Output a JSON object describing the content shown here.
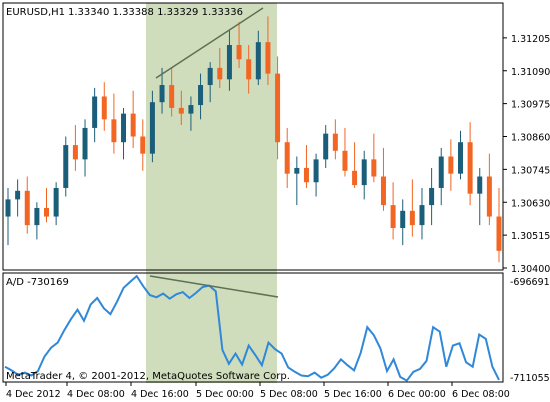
{
  "header": {
    "symbol_label": "EURUSD,H1",
    "ohlc_values": "1.33340 1.33388 1.33329 1.33336"
  },
  "indicator": {
    "label": "A/D -730169",
    "max_label": "-696691",
    "min_label": "-711055"
  },
  "footer": {
    "copyright": "MetaTrader 4, © 2001-2012, MetaQuotes Software Corp."
  },
  "colors": {
    "bull": "#1b5e7a",
    "bear": "#f26522",
    "highlight": "#cfddbd",
    "ad_line": "#2f88d8",
    "trend_line": "#5f6f55"
  },
  "chart_data": [
    {
      "type": "candlestick",
      "title": "EURUSD,H1",
      "ylim": [
        1.304,
        1.3132
      ],
      "y_ticks": [
        "1.31205",
        "1.31090",
        "1.30975",
        "1.30860",
        "1.30745",
        "1.30630",
        "1.30515",
        "1.30400"
      ],
      "x_ticks": [
        "4 Dec 2012",
        "4 Dec 08:00",
        "4 Dec 16:00",
        "5 Dec 00:00",
        "5 Dec 08:00",
        "5 Dec 16:00",
        "6 Dec 00:00",
        "6 Dec 08:00"
      ],
      "bear_from_index": 43,
      "candles": [
        [
          1.3058,
          1.3068,
          1.3048,
          1.3064
        ],
        [
          1.3064,
          1.3071,
          1.3058,
          1.3067
        ],
        [
          1.3067,
          1.3072,
          1.3052,
          1.3055
        ],
        [
          1.3055,
          1.3063,
          1.305,
          1.3061
        ],
        [
          1.3061,
          1.3068,
          1.3056,
          1.3058
        ],
        [
          1.3058,
          1.307,
          1.3055,
          1.3068
        ],
        [
          1.3068,
          1.3086,
          1.3065,
          1.3083
        ],
        [
          1.3083,
          1.309,
          1.3074,
          1.3078
        ],
        [
          1.3078,
          1.3092,
          1.3072,
          1.3089
        ],
        [
          1.3089,
          1.3103,
          1.3084,
          1.31
        ],
        [
          1.31,
          1.3105,
          1.3088,
          1.3092
        ],
        [
          1.3092,
          1.3101,
          1.308,
          1.3084
        ],
        [
          1.3084,
          1.3096,
          1.3078,
          1.3094
        ],
        [
          1.3094,
          1.3102,
          1.3082,
          1.3086
        ],
        [
          1.3086,
          1.3092,
          1.3074,
          1.308
        ],
        [
          1.308,
          1.3102,
          1.3077,
          1.3098
        ],
        [
          1.3098,
          1.311,
          1.3094,
          1.3104
        ],
        [
          1.3104,
          1.311,
          1.3093,
          1.3096
        ],
        [
          1.3096,
          1.3102,
          1.309,
          1.3094
        ],
        [
          1.3094,
          1.31,
          1.3088,
          1.3097
        ],
        [
          1.3097,
          1.3108,
          1.3092,
          1.3104
        ],
        [
          1.3104,
          1.3112,
          1.3098,
          1.311
        ],
        [
          1.311,
          1.3117,
          1.3103,
          1.3106
        ],
        [
          1.3106,
          1.3123,
          1.3102,
          1.3118
        ],
        [
          1.3118,
          1.3126,
          1.311,
          1.3113
        ],
        [
          1.3113,
          1.3118,
          1.3101,
          1.3106
        ],
        [
          1.3106,
          1.3123,
          1.3104,
          1.3119
        ],
        [
          1.3119,
          1.3128,
          1.3104,
          1.3108
        ],
        [
          1.3108,
          1.3114,
          1.3078,
          1.3084
        ],
        [
          1.3084,
          1.3089,
          1.3068,
          1.3073
        ],
        [
          1.3073,
          1.3079,
          1.3062,
          1.3075
        ],
        [
          1.3075,
          1.3083,
          1.3068,
          1.307
        ],
        [
          1.307,
          1.308,
          1.3065,
          1.3078
        ],
        [
          1.3078,
          1.309,
          1.3075,
          1.3087
        ],
        [
          1.3087,
          1.3092,
          1.3078,
          1.3081
        ],
        [
          1.3081,
          1.3089,
          1.3072,
          1.3074
        ],
        [
          1.3074,
          1.3084,
          1.3068,
          1.3069
        ],
        [
          1.3069,
          1.3081,
          1.3064,
          1.3078
        ],
        [
          1.3078,
          1.3087,
          1.307,
          1.3072
        ],
        [
          1.3072,
          1.3082,
          1.306,
          1.3062
        ],
        [
          1.3062,
          1.307,
          1.305,
          1.3054
        ],
        [
          1.3054,
          1.3064,
          1.3048,
          1.306
        ],
        [
          1.306,
          1.3071,
          1.3051,
          1.3055
        ],
        [
          1.3055,
          1.3068,
          1.305,
          1.3062
        ],
        [
          1.3062,
          1.3075,
          1.3055,
          1.3068
        ],
        [
          1.3068,
          1.3082,
          1.3062,
          1.3079
        ],
        [
          1.3079,
          1.3085,
          1.3067,
          1.3073
        ],
        [
          1.3073,
          1.3088,
          1.3071,
          1.3084
        ],
        [
          1.3084,
          1.3091,
          1.3062,
          1.3066
        ],
        [
          1.3066,
          1.3075,
          1.3055,
          1.3072
        ],
        [
          1.3072,
          1.308,
          1.3055,
          1.3058
        ],
        [
          1.3058,
          1.3068,
          1.3042,
          1.3046
        ]
      ]
    },
    {
      "type": "line",
      "title": "A/D -730169",
      "ylim": [
        -711055,
        -696691
      ],
      "values": [
        -709100,
        -709600,
        -710200,
        -709900,
        -710300,
        -709700,
        -707700,
        -706500,
        -705800,
        -704100,
        -702600,
        -701300,
        -702800,
        -700600,
        -699700,
        -701100,
        -701900,
        -700200,
        -698300,
        -697500,
        -696700,
        -698100,
        -699300,
        -699600,
        -699100,
        -699800,
        -699200,
        -698900,
        -699700,
        -699000,
        -698200,
        -698000,
        -698800,
        -706800,
        -708700,
        -707300,
        -708800,
        -706200,
        -707500,
        -708900,
        -705800,
        -706700,
        -707300,
        -709200,
        -709800,
        -710300,
        -710400,
        -709900,
        -710600,
        -710200,
        -709300,
        -708100,
        -708900,
        -709600,
        -707200,
        -703700,
        -704800,
        -706600,
        -709700,
        -708100,
        -710500,
        -711000,
        -709800,
        -709400,
        -708300,
        -703700,
        -704300,
        -709100,
        -706200,
        -705900,
        -708500,
        -709100,
        -704700,
        -705300,
        -709100,
        -710900
      ]
    }
  ]
}
